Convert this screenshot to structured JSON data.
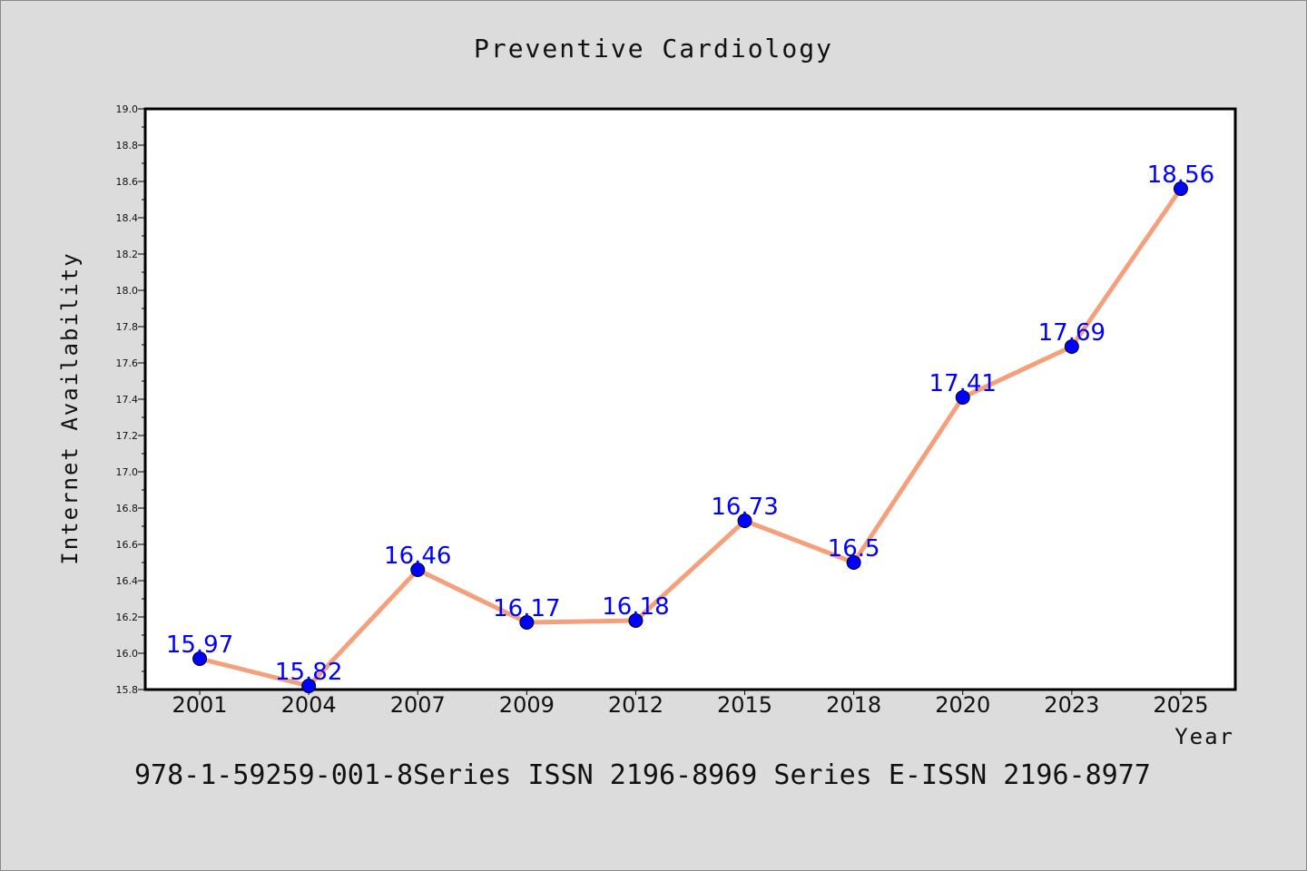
{
  "colors": {
    "background": "#dcdcdc",
    "plot_background": "#ffffff",
    "line": "#f4a07c",
    "marker": "#0000ff",
    "data_label": "#0000ff"
  },
  "caption": "978-1-59259-001-8Series ISSN 2196-8969 Series E-ISSN 2196-8977",
  "chart_data": {
    "type": "line",
    "title": "Preventive Cardiology",
    "xlabel": "Year",
    "ylabel": "Internet Availability",
    "categories": [
      "2001",
      "2004",
      "2007",
      "2009",
      "2012",
      "2015",
      "2018",
      "2020",
      "2023",
      "2025"
    ],
    "values": [
      15.97,
      15.82,
      16.46,
      16.17,
      16.18,
      16.73,
      16.5,
      17.41,
      17.69,
      18.56
    ],
    "data_labels": [
      "15.97",
      "15.82",
      "16.46",
      "16.17",
      "16.18",
      "16.73",
      "16.5",
      "17.41",
      "17.69",
      "18.56"
    ],
    "ylim": [
      15.8,
      19.0
    ],
    "yticks": [
      "15.8",
      "16.0",
      "16.2",
      "16.4",
      "16.6",
      "16.8",
      "17.0",
      "17.2",
      "17.4",
      "17.6",
      "17.8",
      "18.0",
      "18.2",
      "18.4",
      "18.6",
      "18.8",
      "19.0"
    ],
    "grid": false,
    "legend": "none"
  }
}
